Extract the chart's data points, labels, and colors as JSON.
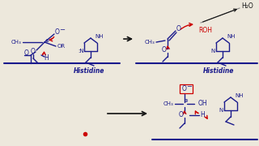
{
  "bg_color": "#ede8dc",
  "blue": "#1a1a8c",
  "red": "#cc0000",
  "black": "#111111",
  "gray": "#888888",
  "panel1_histidine": "Histidine",
  "panel2_histidine": "Histidine",
  "h2o": "H₂O",
  "roh": "ROH",
  "ch3": "CH₃",
  "figw": 3.2,
  "figh": 1.8,
  "dpi": 100
}
